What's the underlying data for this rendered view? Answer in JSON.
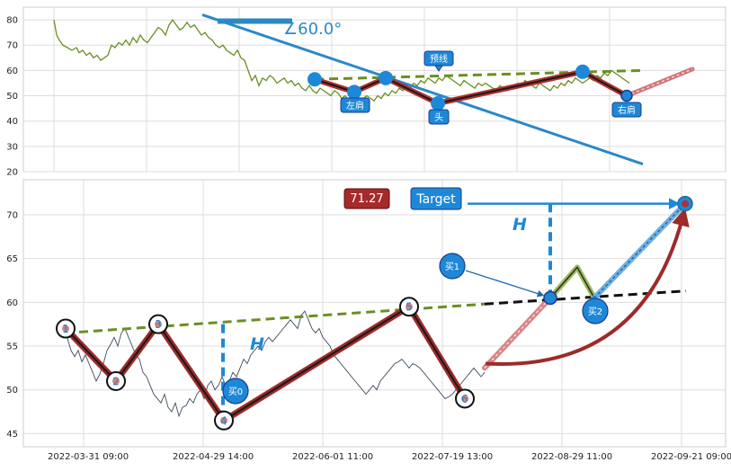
{
  "chart_data": [
    {
      "type": "line",
      "panel": "top",
      "ylim": [
        20,
        85
      ],
      "yticks": [
        20,
        30,
        40,
        50,
        60,
        70,
        80
      ],
      "grid": true,
      "price_color": "#6b8e23",
      "price_x": [
        0,
        3,
        6,
        10,
        15,
        20,
        25,
        28,
        32,
        36,
        40,
        44,
        48,
        52,
        56,
        60,
        64,
        68,
        72,
        76,
        80,
        84,
        88,
        92,
        96,
        100,
        104,
        108,
        112,
        116,
        120,
        124,
        128,
        132,
        136,
        140,
        144,
        148,
        152,
        156,
        160,
        164,
        168,
        172,
        176,
        180,
        184,
        188,
        192,
        196,
        200,
        204,
        208,
        212,
        216,
        220,
        224,
        228,
        232,
        236,
        240,
        244,
        248,
        252,
        256,
        260,
        264,
        268,
        272,
        276,
        280,
        284,
        288,
        292,
        296,
        300,
        304,
        308,
        312,
        316,
        320,
        324,
        328,
        332,
        336,
        340,
        344,
        348,
        352,
        356,
        360,
        364,
        368,
        372,
        376,
        380,
        384,
        388,
        392,
        396,
        400,
        404,
        408,
        412,
        416,
        420,
        424,
        428,
        432,
        436,
        440,
        444,
        448,
        452,
        456,
        460,
        464,
        468,
        472,
        476,
        480,
        484,
        488,
        492,
        496,
        500,
        504,
        508,
        512,
        516,
        520,
        524,
        528,
        532,
        536,
        540,
        544,
        548,
        552,
        556,
        560,
        564,
        568,
        572,
        576,
        580,
        584,
        588,
        592,
        596,
        600,
        604,
        608,
        612,
        616,
        620,
        624,
        628,
        632,
        636,
        640,
        645
      ],
      "price_y": [
        80,
        74,
        72,
        70,
        69,
        68,
        69,
        67,
        68,
        66,
        67,
        65,
        66,
        64,
        65,
        66,
        70,
        69,
        71,
        70,
        72,
        70,
        73,
        71,
        74,
        72,
        71,
        73,
        75,
        77,
        76,
        74,
        78,
        80,
        78,
        76,
        77,
        79,
        77,
        78,
        76,
        74,
        75,
        73,
        72,
        70,
        69,
        70,
        68,
        67,
        66,
        68,
        65,
        64,
        60,
        56,
        58,
        54,
        57,
        56,
        58,
        57,
        55,
        56,
        57,
        55,
        56,
        54,
        55,
        53,
        52,
        54,
        52,
        51,
        53,
        52,
        51,
        50,
        52,
        51,
        49,
        50,
        48,
        49,
        47,
        48,
        49,
        50,
        49,
        48,
        50,
        49,
        51,
        50,
        52,
        51,
        53,
        52,
        54,
        53,
        55,
        54,
        56,
        55,
        57,
        56,
        55,
        57,
        56,
        58,
        57,
        56,
        55,
        54,
        56,
        55,
        54,
        53,
        55,
        54,
        55,
        54,
        53,
        52,
        54,
        53,
        52,
        53,
        54,
        55,
        54,
        56,
        55,
        54,
        53,
        55,
        54,
        53,
        52,
        54,
        53,
        55,
        54,
        56,
        55,
        57,
        56,
        55,
        56,
        57,
        56,
        58,
        57,
        59,
        58,
        60,
        59,
        58,
        57,
        56,
        55
      ],
      "hs_points": [
        [
          290,
          56.5
        ],
        [
          334,
          51.5
        ],
        [
          369,
          57
        ],
        [
          427,
          47
        ],
        [
          588,
          59.5
        ],
        [
          637,
          50
        ]
      ],
      "hs_labels": [
        "左肩",
        "头",
        "右肩"
      ],
      "neckline_label": "预线",
      "trend_start": [
        165,
        82
      ],
      "trend_end": [
        655,
        23
      ],
      "angle_label": "∠60.0°"
    },
    {
      "type": "line",
      "panel": "bottom",
      "ylim": [
        43.5,
        74
      ],
      "yticks": [
        45,
        50,
        55,
        60,
        65,
        70
      ],
      "grid": true,
      "xtick_labels": [
        "2022-03-31 09:00",
        "2022-04-29 14:00",
        "2022-06-01 11:00",
        "2022-07-19 13:00",
        "2022-08-29 11:00",
        "2022-09-21 09:00"
      ],
      "price_color": "#3c4a5c",
      "price_x": [
        10,
        13,
        16,
        20,
        24,
        28,
        32,
        36,
        40,
        44,
        48,
        52,
        56,
        60,
        64,
        68,
        72,
        76,
        80,
        84,
        88,
        92,
        96,
        100,
        104,
        108,
        112,
        116,
        120,
        124,
        128,
        132,
        136,
        140,
        144,
        148,
        152,
        156,
        160,
        164,
        168,
        172,
        176,
        180,
        184,
        188,
        192,
        196,
        200,
        204,
        208,
        212,
        216,
        220,
        224,
        228,
        232,
        236,
        240,
        244,
        248,
        252,
        256,
        260,
        264,
        268,
        272,
        276,
        280,
        284,
        288,
        292,
        296,
        300,
        304,
        308,
        312,
        316,
        320,
        324,
        328,
        332,
        336,
        340,
        344,
        348,
        352,
        356,
        360,
        364,
        368,
        372,
        376,
        380,
        384,
        388,
        392,
        396,
        400,
        404,
        408,
        412,
        416,
        420,
        424,
        428,
        432,
        436,
        440,
        444,
        448,
        452,
        456,
        460,
        464,
        468,
        472,
        476
      ],
      "price_y": [
        56.8,
        55.5,
        54.5,
        53.8,
        54.5,
        53.2,
        54.0,
        53.0,
        52.0,
        51.0,
        51.8,
        53.0,
        54.5,
        55.2,
        56.0,
        55.0,
        56.5,
        57.0,
        56.0,
        55.0,
        54.0,
        53.5,
        52.0,
        51.5,
        50.5,
        49.5,
        49.0,
        48.5,
        49.5,
        48.0,
        47.5,
        48.5,
        47.0,
        48.0,
        48.2,
        49.0,
        48.5,
        49.5,
        50.0,
        49.0,
        50.5,
        51.0,
        50.0,
        50.5,
        51.5,
        50.5,
        51.0,
        52.0,
        51.5,
        52.5,
        53.5,
        53.0,
        54.0,
        54.5,
        55.0,
        54.5,
        55.5,
        56.0,
        55.5,
        56.0,
        56.5,
        57.0,
        57.5,
        58.0,
        57.5,
        57.0,
        58.5,
        59.0,
        58.0,
        57.0,
        56.5,
        57.0,
        56.0,
        55.5,
        55.0,
        54.0,
        53.5,
        53.0,
        52.5,
        52.0,
        51.5,
        51.0,
        50.5,
        50.0,
        49.5,
        50.0,
        50.5,
        50.0,
        51.0,
        51.5,
        52.0,
        52.5,
        53.0,
        53.2,
        53.5,
        53.0,
        52.5,
        53.0,
        52.8,
        52.5,
        52.0,
        51.5,
        51.0,
        50.5,
        50.0,
        49.5,
        49.0,
        49.2,
        49.5,
        50.0,
        50.5,
        51.0,
        51.5,
        52.0,
        52.5,
        52.0,
        51.5,
        52.0
      ],
      "points": [
        [
          10,
          57.0
        ],
        [
          66,
          51.0
        ],
        [
          113,
          57.5
        ],
        [
          186,
          46.5
        ],
        [
          392,
          59.5
        ],
        [
          454,
          49.0
        ]
      ],
      "point_labels": [
        "1",
        "2",
        "3",
        "4",
        "5",
        "6"
      ],
      "buy_labels": [
        "买0",
        "买1",
        "买2"
      ],
      "target_label": "Target",
      "target_value": "71.27",
      "h_label": "H"
    }
  ]
}
